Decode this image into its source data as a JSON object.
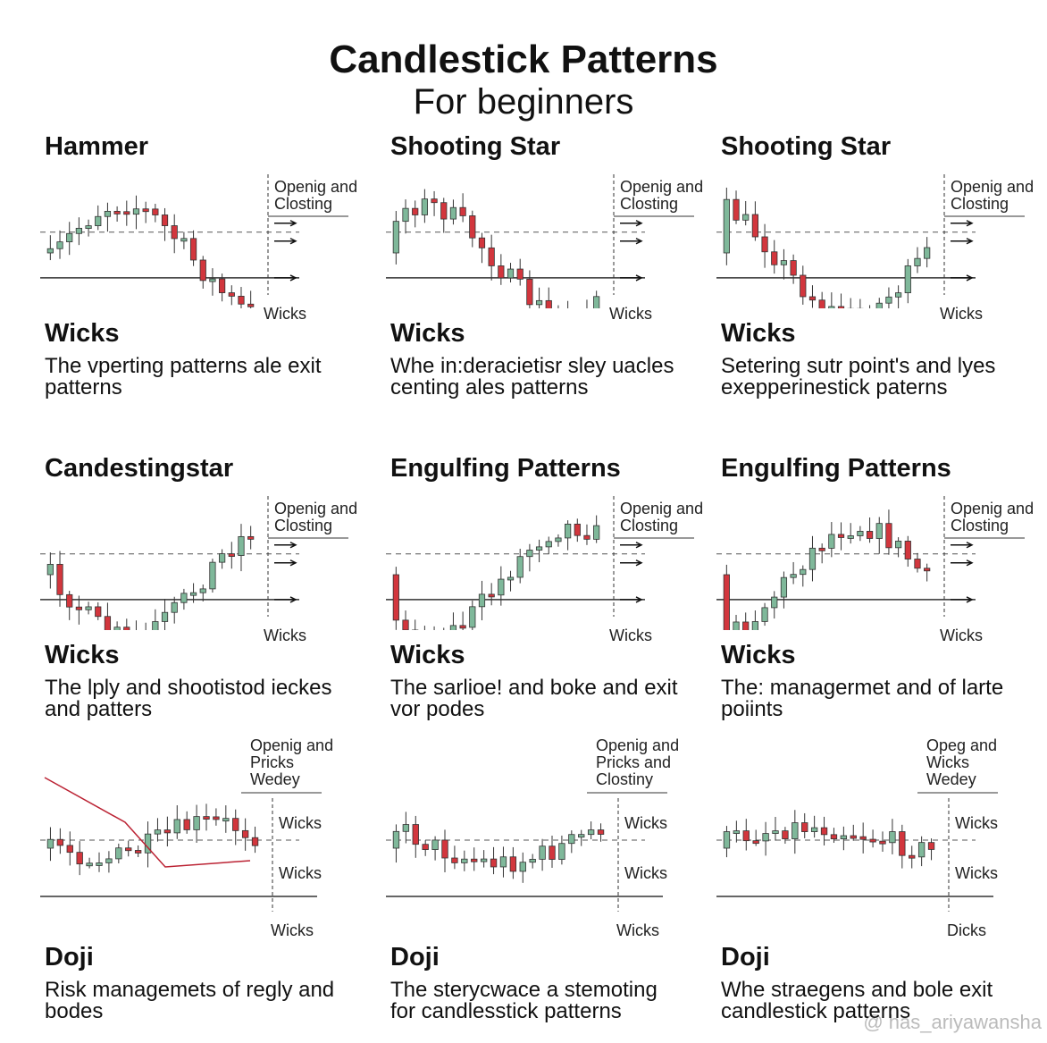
{
  "title": "Candlestick Patterns",
  "subtitle": "For beginners",
  "panels": [
    {
      "title": "Hammer",
      "notes": [
        "Openig and",
        "Closting"
      ],
      "foot": "Wicks",
      "heading": "Wicks",
      "lines": [
        "The vperting patterns ale exit",
        "patterns"
      ]
    },
    {
      "title": "Shooting Star",
      "notes": [
        "Openig and",
        "Closting"
      ],
      "foot": "Wicks",
      "heading": "Wicks",
      "lines": [
        "Whe in:deracietisr sley uacles",
        "centing ales patterns"
      ]
    },
    {
      "title": "Shooting Star",
      "notes": [
        "Openig and",
        "Closting"
      ],
      "foot": "Wicks",
      "heading": "Wicks",
      "lines": [
        "Setering sutr point's and lyes",
        "exepperinestick paterns"
      ]
    },
    {
      "title": "Candestingstar",
      "notes": [
        "Openig and",
        "Closting"
      ],
      "foot": "Wicks",
      "heading": "Wicks",
      "lines": [
        "The lply and shootistod ieckes",
        "and patters"
      ]
    },
    {
      "title": "Engulfing Patterns",
      "notes": [
        "Openig and",
        "Closting"
      ],
      "foot": "Wicks",
      "heading": "Wicks",
      "lines": [
        "The sarlioe! and boke and exit",
        "vor podes"
      ]
    },
    {
      "title": "Engulfing Patterns",
      "notes": [
        "Openig and",
        "Closting"
      ],
      "foot": "Wicks",
      "heading": "Wicks",
      "lines": [
        "The: managermet and of larte",
        "poiints"
      ]
    },
    {
      "notes": [
        "Openig and",
        "Pricks",
        "Wedey"
      ],
      "side": [
        "Wicks",
        "Wicks"
      ],
      "foot": "Wicks",
      "heading": "Doji",
      "lines": [
        "Risk managemets of regly and",
        "bodes"
      ]
    },
    {
      "notes": [
        "Openig and",
        "Pricks and",
        "Clostiny"
      ],
      "side": [
        "Wicks",
        "Wicks"
      ],
      "foot": "Wicks",
      "heading": "Doji",
      "lines": [
        "The sterycwace a stemoting",
        "for candlesstick patterns"
      ]
    },
    {
      "notes": [
        "Opeg and",
        "Wicks",
        "Wedey"
      ],
      "side": [
        "Wicks",
        "Wicks"
      ],
      "foot": "Dicks",
      "heading": "Doji",
      "lines": [
        "Whe straegens and bole exit",
        "candlestick patterns"
      ]
    }
  ],
  "watermark": "@ has_ariyawansha"
}
